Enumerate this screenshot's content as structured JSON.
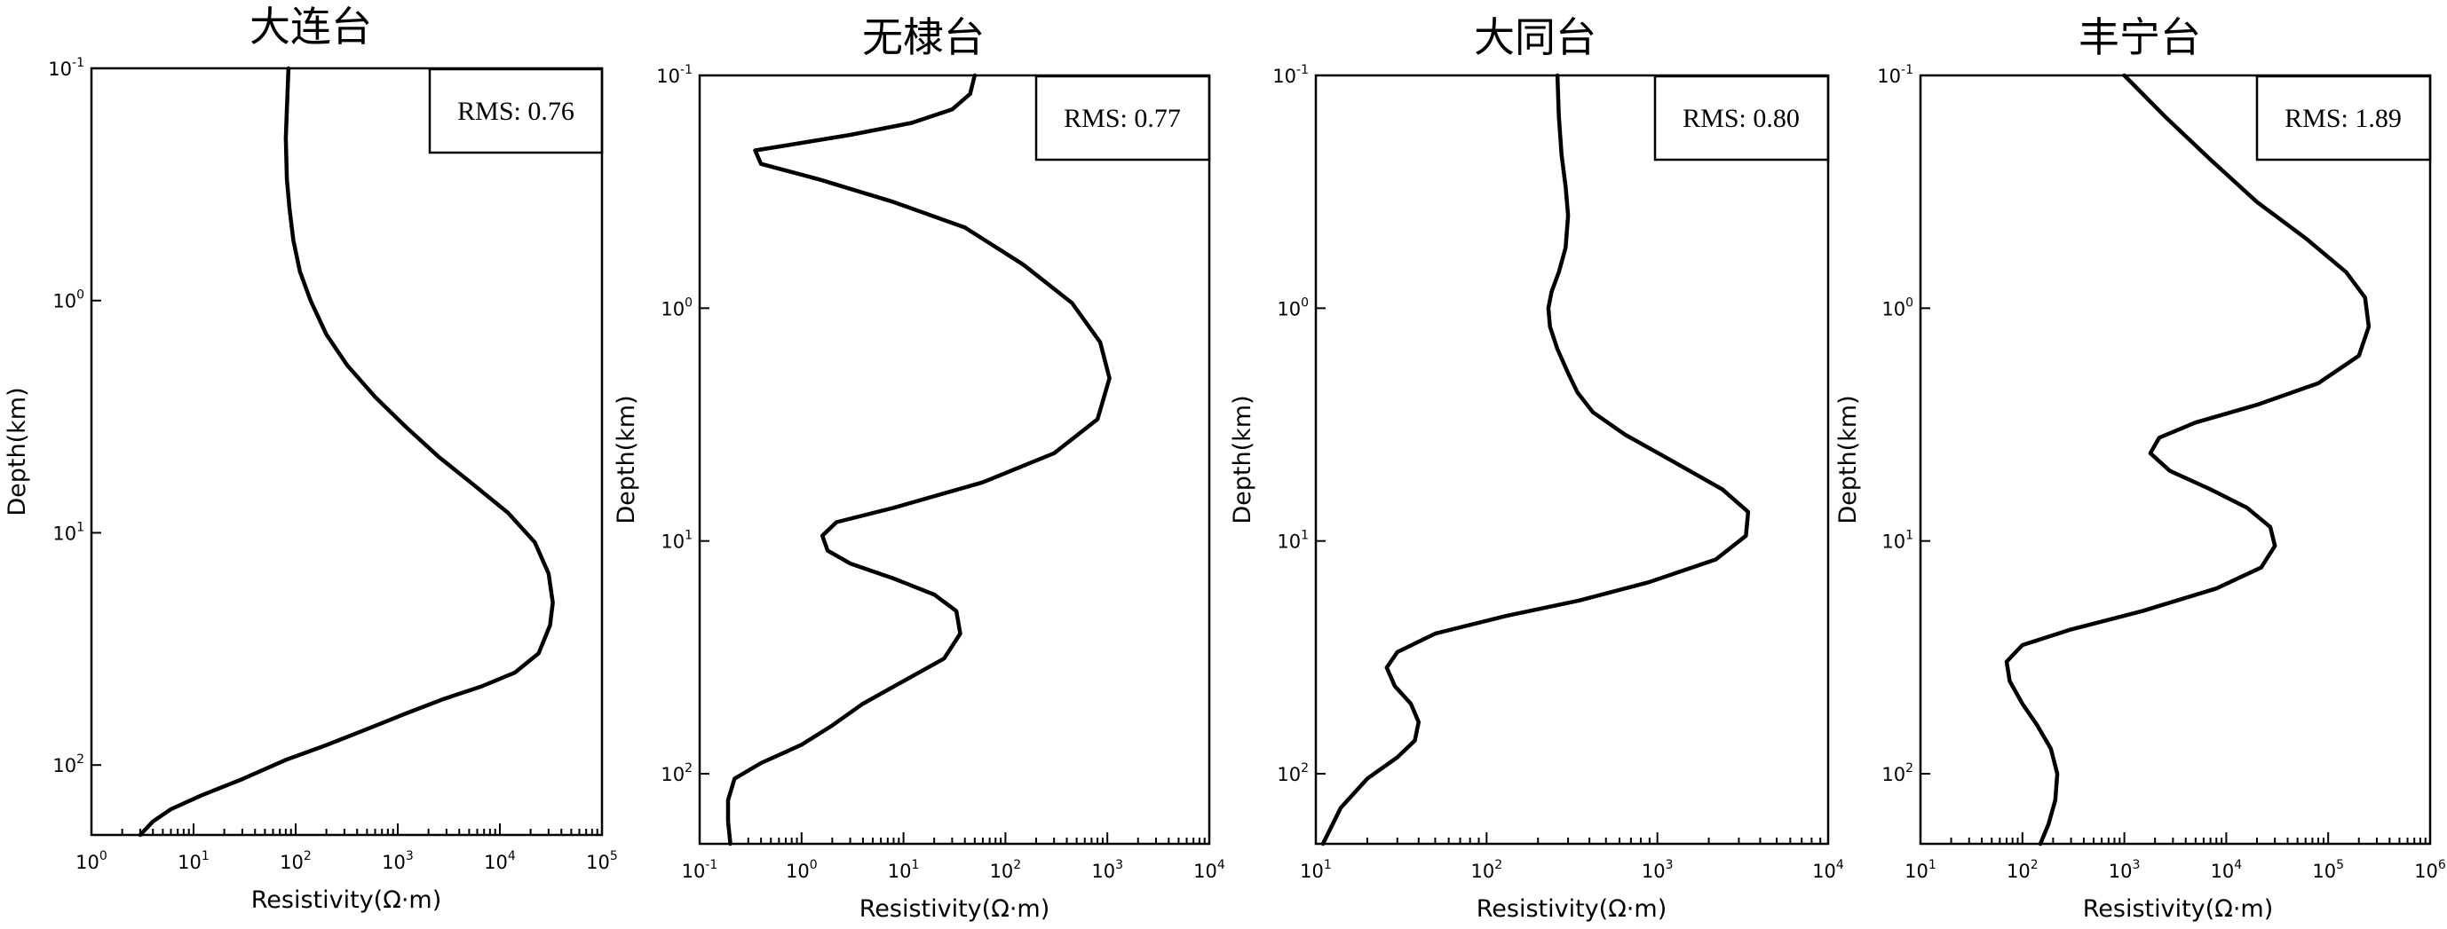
{
  "chart_data": [
    {
      "type": "line",
      "title": "大连台",
      "xlabel": "Resistivity(Ω·m)",
      "ylabel": "Depth(km)",
      "x_scale": "log",
      "y_scale": "log",
      "y_inverted": true,
      "xlim": [
        1,
        100000
      ],
      "ylim": [
        0.1,
        200
      ],
      "x_ticks": [
        1,
        10,
        100,
        1000,
        10000,
        100000
      ],
      "y_ticks": [
        0.1,
        1,
        10,
        100
      ],
      "annotation": "RMS: 0.76",
      "series": [
        {
          "x": [
            85,
            82,
            80,
            82,
            87,
            95,
            110,
            140,
            200,
            320,
            600,
            1200,
            2500,
            5500,
            12000,
            22000,
            30000,
            33000,
            31000,
            24000,
            14000,
            6500,
            2800,
            1200,
            500,
            200,
            80,
            30,
            12,
            6,
            4,
            3
          ],
          "y": [
            0.1,
            0.15,
            0.2,
            0.3,
            0.4,
            0.55,
            0.75,
            1,
            1.4,
            1.9,
            2.6,
            3.5,
            4.7,
            6.2,
            8.2,
            11,
            15,
            20,
            25,
            33,
            40,
            46,
            52,
            60,
            70,
            82,
            95,
            115,
            135,
            155,
            175,
            200
          ]
        }
      ]
    },
    {
      "type": "line",
      "title": "无棣台",
      "xlabel": "Resistivity(Ω·m)",
      "ylabel": "Depth(km)",
      "x_scale": "log",
      "y_scale": "log",
      "y_inverted": true,
      "xlim": [
        0.1,
        10000
      ],
      "ylim": [
        0.1,
        200
      ],
      "x_ticks": [
        0.1,
        1,
        10,
        100,
        1000,
        10000
      ],
      "y_ticks": [
        0.1,
        1,
        10,
        100
      ],
      "annotation": "RMS: 0.77",
      "series": [
        {
          "x": [
            50,
            45,
            30,
            12,
            3,
            0.7,
            0.35,
            0.4,
            1.5,
            8,
            40,
            150,
            450,
            850,
            1050,
            800,
            300,
            60,
            8,
            2.2,
            1.6,
            1.8,
            3,
            8,
            20,
            33,
            36,
            25,
            10,
            4,
            2,
            1,
            0.4,
            0.22,
            0.19,
            0.19,
            0.2
          ],
          "y": [
            0.1,
            0.12,
            0.14,
            0.16,
            0.18,
            0.2,
            0.21,
            0.24,
            0.28,
            0.35,
            0.45,
            0.65,
            0.95,
            1.4,
            2,
            3,
            4.2,
            5.6,
            7.2,
            8.3,
            9.5,
            11,
            12.5,
            14.5,
            17,
            20,
            25,
            32,
            40,
            50,
            62,
            75,
            90,
            105,
            130,
            160,
            200
          ]
        }
      ]
    },
    {
      "type": "line",
      "title": "大同台",
      "xlabel": "Resistivity(Ω·m)",
      "ylabel": "Depth(km)",
      "x_scale": "log",
      "y_scale": "log",
      "y_inverted": true,
      "xlim": [
        10,
        10000
      ],
      "ylim": [
        0.1,
        200
      ],
      "x_ticks": [
        10,
        100,
        1000,
        10000
      ],
      "y_ticks": [
        0.1,
        1,
        10,
        100
      ],
      "annotation": "RMS: 0.80",
      "series": [
        {
          "x": [
            260,
            265,
            275,
            290,
            300,
            290,
            265,
            240,
            230,
            235,
            260,
            300,
            340,
            420,
            650,
            1200,
            2400,
            3400,
            3300,
            2200,
            900,
            350,
            130,
            50,
            30,
            26,
            29,
            36,
            40,
            38,
            30,
            20,
            14,
            11
          ],
          "y": [
            0.1,
            0.15,
            0.22,
            0.3,
            0.4,
            0.55,
            0.7,
            0.85,
            1,
            1.2,
            1.5,
            1.9,
            2.3,
            2.8,
            3.5,
            4.5,
            6,
            7.5,
            9.5,
            12,
            15,
            18,
            21,
            25,
            30,
            35,
            42,
            50,
            60,
            72,
            85,
            105,
            140,
            200
          ]
        }
      ]
    },
    {
      "type": "line",
      "title": "丰宁台",
      "xlabel": "Resistivity(Ω·m)",
      "ylabel": "Depth(km)",
      "x_scale": "log",
      "y_scale": "log",
      "y_inverted": true,
      "xlim": [
        10,
        1000000
      ],
      "ylim": [
        0.1,
        200
      ],
      "x_ticks": [
        10,
        100,
        1000,
        10000,
        100000,
        1000000
      ],
      "y_ticks": [
        0.1,
        1,
        10,
        100
      ],
      "annotation": "RMS: 1.89",
      "series": [
        {
          "x": [
            1000,
            2500,
            7000,
            20000,
            60000,
            150000,
            230000,
            250000,
            200000,
            80000,
            20000,
            5000,
            2200,
            1800,
            2800,
            7000,
            16000,
            27000,
            30000,
            22000,
            8000,
            1500,
            300,
            100,
            70,
            75,
            100,
            140,
            190,
            220,
            210,
            180,
            150
          ],
          "y": [
            0.1,
            0.15,
            0.23,
            0.35,
            0.5,
            0.7,
            0.9,
            1.2,
            1.6,
            2.1,
            2.6,
            3.1,
            3.6,
            4.2,
            5,
            6,
            7.2,
            8.7,
            10.5,
            13,
            16,
            20,
            24,
            28,
            33,
            40,
            50,
            62,
            78,
            100,
            130,
            165,
            200
          ]
        }
      ]
    }
  ]
}
